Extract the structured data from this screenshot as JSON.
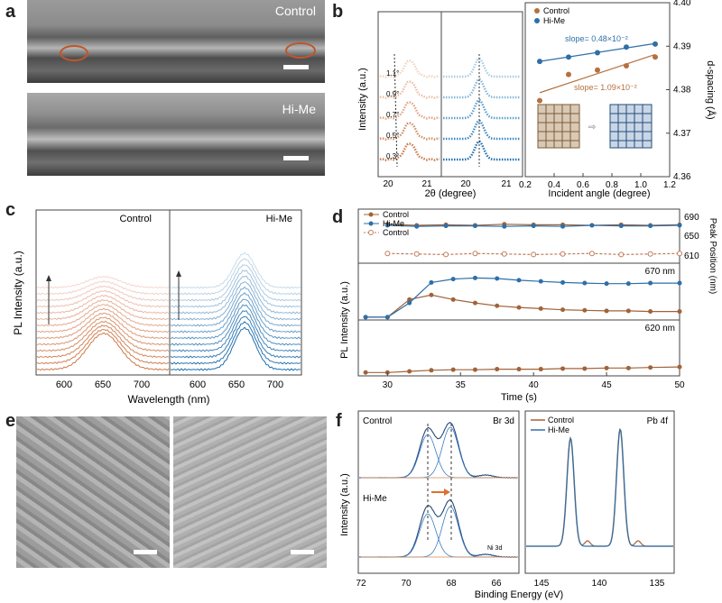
{
  "panels": {
    "a": {
      "letter": "a",
      "top_label": "Control",
      "bottom_label": "Hi-Me"
    },
    "b": {
      "letter": "b",
      "ylabel_left": "Intensity (a.u.)",
      "xlabel_left": "2θ (degree)",
      "angle_labels": [
        "1.1°",
        "0.9°",
        "0.7°",
        "0.5°",
        "0.3°"
      ],
      "left_ticks_a": [
        "20",
        "21"
      ],
      "left_ticks_b": [
        "20",
        "21"
      ],
      "legend": [
        "Control",
        "Hi-Me"
      ],
      "slope_hime": "slope= 0.48×10⁻²",
      "slope_control": "slope= 1.09×10⁻²",
      "ylabel_right": "d-spacing (Å)",
      "xlabel_right": "Incident angle (degree)",
      "right_yticks": [
        "4.40",
        "4.39",
        "4.38",
        "4.37",
        "4.36"
      ],
      "right_xticks": [
        "0.2",
        "0.4",
        "0.6",
        "0.8",
        "1.0",
        "1.2"
      ]
    },
    "c": {
      "letter": "c",
      "left_title": "Control",
      "right_title": "Hi-Me",
      "ylabel": "PL Intensity (a.u.)",
      "xlabel": "Wavelength (nm)",
      "xticks_left": [
        "600",
        "650",
        "700"
      ],
      "xticks_right": [
        "600",
        "650",
        "700"
      ]
    },
    "d": {
      "letter": "d",
      "legend": [
        "Control",
        "Hi-Me",
        "Control"
      ],
      "ylabel_right": "Peak Position (nm)",
      "right_yticks": [
        "690",
        "650",
        "610"
      ],
      "label_670": "670 nm",
      "label_620": "620 nm",
      "ylabel": "PL Intensity (a.u.)",
      "xlabel": "Time (s)",
      "xticks": [
        "30",
        "35",
        "40",
        "45",
        "50"
      ]
    },
    "e": {
      "letter": "e"
    },
    "f": {
      "letter": "f",
      "control_label": "Control",
      "br_label": "Br 3d",
      "hime_label": "Hi-Me",
      "ni_label": "Ni 3d",
      "pb_label": "Pb 4f",
      "legend": [
        "Control",
        "Hi-Me"
      ],
      "ylabel": "Intensity (a.u.)",
      "xlabel": "Binding Energy (eV)",
      "xticks_left": [
        "72",
        "70",
        "68",
        "66"
      ],
      "xticks_right": [
        "145",
        "140",
        "135"
      ]
    }
  },
  "chart_data": [
    {
      "type": "line",
      "title": "b (right): d-spacing vs incident angle",
      "xlabel": "Incident angle (degree)",
      "ylabel": "d-spacing (Å)",
      "xlim": [
        0.2,
        1.2
      ],
      "ylim": [
        4.36,
        4.4
      ],
      "series": [
        {
          "name": "Control",
          "x": [
            0.3,
            0.5,
            0.7,
            0.9,
            1.1
          ],
          "y": [
            4.3775,
            4.3835,
            4.3845,
            4.3855,
            4.3875
          ]
        },
        {
          "name": "Hi-Me",
          "x": [
            0.3,
            0.5,
            0.7,
            0.9,
            1.1
          ],
          "y": [
            4.3865,
            4.3875,
            4.3885,
            4.3898,
            4.3905
          ]
        }
      ]
    },
    {
      "type": "line",
      "title": "d (top): Peak position vs time",
      "xlabel": "Time (s)",
      "ylabel": "Peak Position (nm)",
      "xlim": [
        28,
        50
      ],
      "ylim": [
        600,
        700
      ],
      "series": [
        {
          "name": "Control",
          "x": [
            30,
            32,
            34,
            36,
            38,
            40,
            42,
            44,
            46,
            48,
            50
          ],
          "y": [
            672,
            670,
            671,
            670,
            672,
            671,
            671,
            670,
            671,
            670,
            671
          ]
        },
        {
          "name": "Hi-Me",
          "x": [
            30,
            32,
            34,
            36,
            38,
            40,
            42,
            44,
            46,
            48,
            50
          ],
          "y": [
            670,
            668,
            669,
            669,
            668,
            669,
            668,
            670,
            669,
            669,
            670
          ]
        },
        {
          "name": "Control",
          "x": [
            30,
            32,
            34,
            36,
            38,
            40,
            42,
            44,
            46,
            48,
            50
          ],
          "y": [
            618,
            617,
            616,
            618,
            617,
            616,
            617,
            618,
            616,
            617,
            618
          ]
        }
      ]
    },
    {
      "type": "line",
      "title": "d (middle): 670 nm PL intensity vs time",
      "xlabel": "Time (s)",
      "xlim": [
        28,
        50
      ],
      "ylim": [
        0,
        1
      ],
      "series": [
        {
          "name": "Control",
          "x": [
            28.5,
            30,
            31.5,
            33,
            34.5,
            36,
            37.5,
            39,
            40.5,
            42,
            43.5,
            45,
            46.5,
            48,
            50
          ],
          "y": [
            0.05,
            0.05,
            0.36,
            0.44,
            0.36,
            0.3,
            0.25,
            0.22,
            0.2,
            0.18,
            0.17,
            0.16,
            0.16,
            0.15,
            0.15
          ]
        },
        {
          "name": "Hi-Me",
          "x": [
            28.5,
            30,
            31.5,
            33,
            34.5,
            36,
            37.5,
            39,
            40.5,
            42,
            43.5,
            45,
            46.5,
            48,
            50
          ],
          "y": [
            0.05,
            0.05,
            0.3,
            0.66,
            0.72,
            0.74,
            0.73,
            0.7,
            0.68,
            0.66,
            0.65,
            0.64,
            0.64,
            0.65,
            0.65
          ]
        }
      ]
    },
    {
      "type": "line",
      "title": "d (bottom): 620 nm PL intensity vs time",
      "xlabel": "Time (s)",
      "xlim": [
        28,
        50
      ],
      "ylim": [
        0,
        1
      ],
      "series": [
        {
          "name": "Control",
          "x": [
            28.5,
            30,
            31.5,
            33,
            34.5,
            36,
            37.5,
            39,
            40.5,
            42,
            43.5,
            45,
            46.5,
            48,
            50
          ],
          "y": [
            0.06,
            0.06,
            0.08,
            0.1,
            0.11,
            0.11,
            0.12,
            0.12,
            0.12,
            0.13,
            0.13,
            0.14,
            0.14,
            0.15,
            0.16
          ]
        }
      ]
    }
  ]
}
